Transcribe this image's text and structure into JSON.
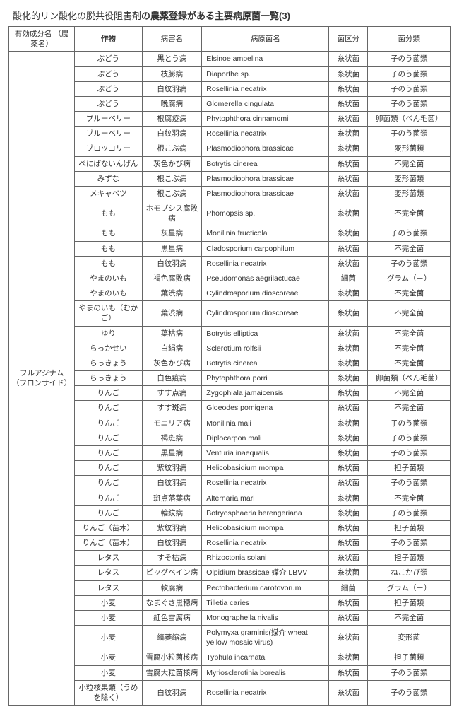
{
  "title_pre": "酸化的リン酸化の脱共役阻害剤",
  "title_bold": "の農薬登録がある主要病原菌一覧(3)",
  "headers": [
    "有効成分名\n（農薬名）",
    "作物",
    "病害名",
    "病原菌名",
    "菌区分",
    "菌分類"
  ],
  "ingredient": "フルアジナム\n（フロンサイド）",
  "rows": [
    [
      "ぶどう",
      "黒とう病",
      "Elsinoe ampelina",
      "糸状菌",
      "子のう菌類"
    ],
    [
      "ぶどう",
      "枝膨病",
      "Diaporthe sp.",
      "糸状菌",
      "子のう菌類"
    ],
    [
      "ぶどう",
      "白紋羽病",
      "Rosellinia necatrix",
      "糸状菌",
      "子のう菌類"
    ],
    [
      "ぶどう",
      "晩腐病",
      "Glomerella cingulata",
      "糸状菌",
      "子のう菌類"
    ],
    [
      "ブルーベリー",
      "根腐疫病",
      "Phytophthora cinnamomi",
      "糸状菌",
      "卵菌類（べん毛菌）"
    ],
    [
      "ブルーベリー",
      "白紋羽病",
      "Rosellinia necatrix",
      "糸状菌",
      "子のう菌類"
    ],
    [
      "ブロッコリー",
      "根こぶ病",
      "Plasmodiophora brassicae",
      "糸状菌",
      "変形菌類"
    ],
    [
      "べにばないんげん",
      "灰色かび病",
      "Botrytis cinerea",
      "糸状菌",
      "不完全菌"
    ],
    [
      "みずな",
      "根こぶ病",
      "Plasmodiophora brassicae",
      "糸状菌",
      "変形菌類"
    ],
    [
      "メキャベツ",
      "根こぶ病",
      "Plasmodiophora brassicae",
      "糸状菌",
      "変形菌類"
    ],
    [
      "もも",
      "ホモプシス腐敗病",
      "Phomopsis sp.",
      "糸状菌",
      "不完全菌"
    ],
    [
      "もも",
      "灰星病",
      "Monilinia fructicola",
      "糸状菌",
      "子のう菌類"
    ],
    [
      "もも",
      "黒星病",
      "Cladosporium carpophilum",
      "糸状菌",
      "不完全菌"
    ],
    [
      "もも",
      "白紋羽病",
      "Rosellinia necatrix",
      "糸状菌",
      "子のう菌類"
    ],
    [
      "やまのいも",
      "褐色腐敗病",
      "Pseudomonas aegrilactucae",
      "細菌",
      "グラム（－）"
    ],
    [
      "やまのいも",
      "葉渋病",
      "Cylindrosporium dioscoreae",
      "糸状菌",
      "不完全菌"
    ],
    [
      "やまのいも（むかご）",
      "葉渋病",
      "Cylindrosporium dioscoreae",
      "糸状菌",
      "不完全菌"
    ],
    [
      "ゆり",
      "葉枯病",
      "Botrytis elliptica",
      "糸状菌",
      "不完全菌"
    ],
    [
      "らっかせい",
      "白絹病",
      "Sclerotium rolfsii",
      "糸状菌",
      "不完全菌"
    ],
    [
      "らっきょう",
      "灰色かび病",
      "Botrytis cinerea",
      "糸状菌",
      "不完全菌"
    ],
    [
      "らっきょう",
      "白色疫病",
      "Phytophthora porri",
      "糸状菌",
      "卵菌類（べん毛菌）"
    ],
    [
      "りんご",
      "すす点病",
      "Zygophiala jamaicensis",
      "糸状菌",
      "不完全菌"
    ],
    [
      "りんご",
      "すす斑病",
      "Gloeodes pomigena",
      "糸状菌",
      "不完全菌"
    ],
    [
      "りんご",
      "モニリア病",
      "Monilinia mali",
      "糸状菌",
      "子のう菌類"
    ],
    [
      "りんご",
      "褐斑病",
      "Diplocarpon mali",
      "糸状菌",
      "子のう菌類"
    ],
    [
      "りんご",
      "黒星病",
      "Venturia inaequalis",
      "糸状菌",
      "子のう菌類"
    ],
    [
      "りんご",
      "紫紋羽病",
      "Helicobasidium mompa",
      "糸状菌",
      "担子菌類"
    ],
    [
      "りんご",
      "白紋羽病",
      "Rosellinia necatrix",
      "糸状菌",
      "子のう菌類"
    ],
    [
      "りんご",
      "斑点落葉病",
      "Alternaria mari",
      "糸状菌",
      "不完全菌"
    ],
    [
      "りんご",
      "輪紋病",
      "Botryosphaeria berengeriana",
      "糸状菌",
      "子のう菌類"
    ],
    [
      "りんご（苗木）",
      "紫紋羽病",
      "Helicobasidium mompa",
      "糸状菌",
      "担子菌類"
    ],
    [
      "りんご（苗木）",
      "白紋羽病",
      "Rosellinia necatrix",
      "糸状菌",
      "子のう菌類"
    ],
    [
      "レタス",
      "すそ枯病",
      "Rhizoctonia solani",
      "糸状菌",
      "担子菌類"
    ],
    [
      "レタス",
      "ビッグベイン病",
      "Olpidium brassicae 媒介 LBVV",
      "糸状菌",
      "ねこかび類"
    ],
    [
      "レタス",
      "軟腐病",
      "Pectobacterium carotovorum",
      "細菌",
      "グラム（－）"
    ],
    [
      "小麦",
      "なまぐさ黒穂病",
      "Tilletia caries",
      "糸状菌",
      "担子菌類"
    ],
    [
      "小麦",
      "紅色雪腐病",
      "Monographella nivalis",
      "糸状菌",
      "不完全菌"
    ],
    [
      "小麦",
      "縞萎縮病",
      "Polymyxa graminis(媒介 wheat yellow mosaic virus)",
      "糸状菌",
      "変形菌"
    ],
    [
      "小麦",
      "雪腐小粒菌核病",
      "Typhula incarnata",
      "糸状菌",
      "担子菌類"
    ],
    [
      "小麦",
      "雪腐大粒菌核病",
      "Myriosclerotinia borealis",
      "糸状菌",
      "子のう菌類"
    ],
    [
      "小粒核果類（うめを除く）",
      "白紋羽病",
      "Rosellinia necatrix",
      "糸状菌",
      "子のう菌類"
    ]
  ]
}
